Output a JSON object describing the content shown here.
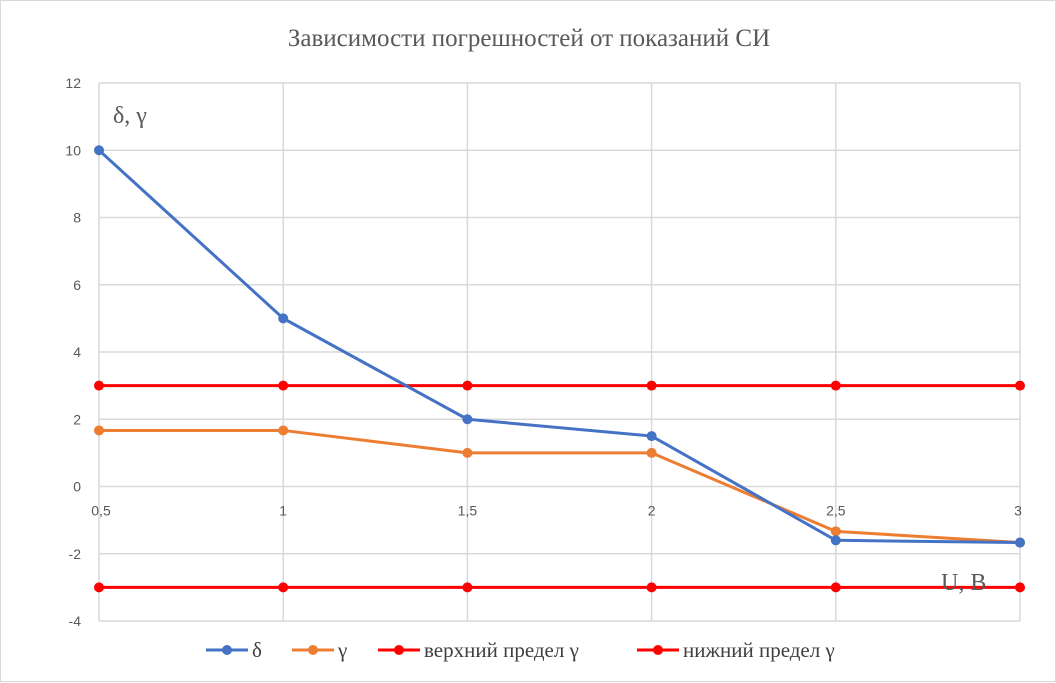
{
  "chart_data": {
    "type": "line",
    "title": "Зависимости погрешностей от показаний СИ",
    "xlabel": "U, В",
    "ylabel": "δ, γ",
    "x_tick_labels": [
      "0,5",
      "1",
      "1,5",
      "2",
      "2,5",
      "3"
    ],
    "y_tick_labels": [
      "-4",
      "-2",
      "0",
      "2",
      "4",
      "6",
      "8",
      "10",
      "12"
    ],
    "y_ticks": [
      -4,
      -2,
      0,
      2,
      4,
      6,
      8,
      10,
      12
    ],
    "ylim": [
      -4,
      12
    ],
    "grid": true,
    "legend_position": "bottom",
    "series": [
      {
        "name": "δ",
        "color": "#4472c4",
        "values": [
          10,
          5,
          2,
          1.5,
          -1.6,
          -1.667
        ]
      },
      {
        "name": "γ",
        "color": "#ed7d31",
        "values": [
          1.667,
          1.667,
          1,
          1,
          -1.333,
          -1.667
        ]
      },
      {
        "name": "верхний предел γ",
        "color": "#ff0000",
        "values": [
          3,
          3,
          3,
          3,
          3,
          3
        ]
      },
      {
        "name": "нижний предел γ",
        "color": "#ff0000",
        "values": [
          -3,
          -3,
          -3,
          -3,
          -3,
          -3
        ]
      }
    ]
  }
}
